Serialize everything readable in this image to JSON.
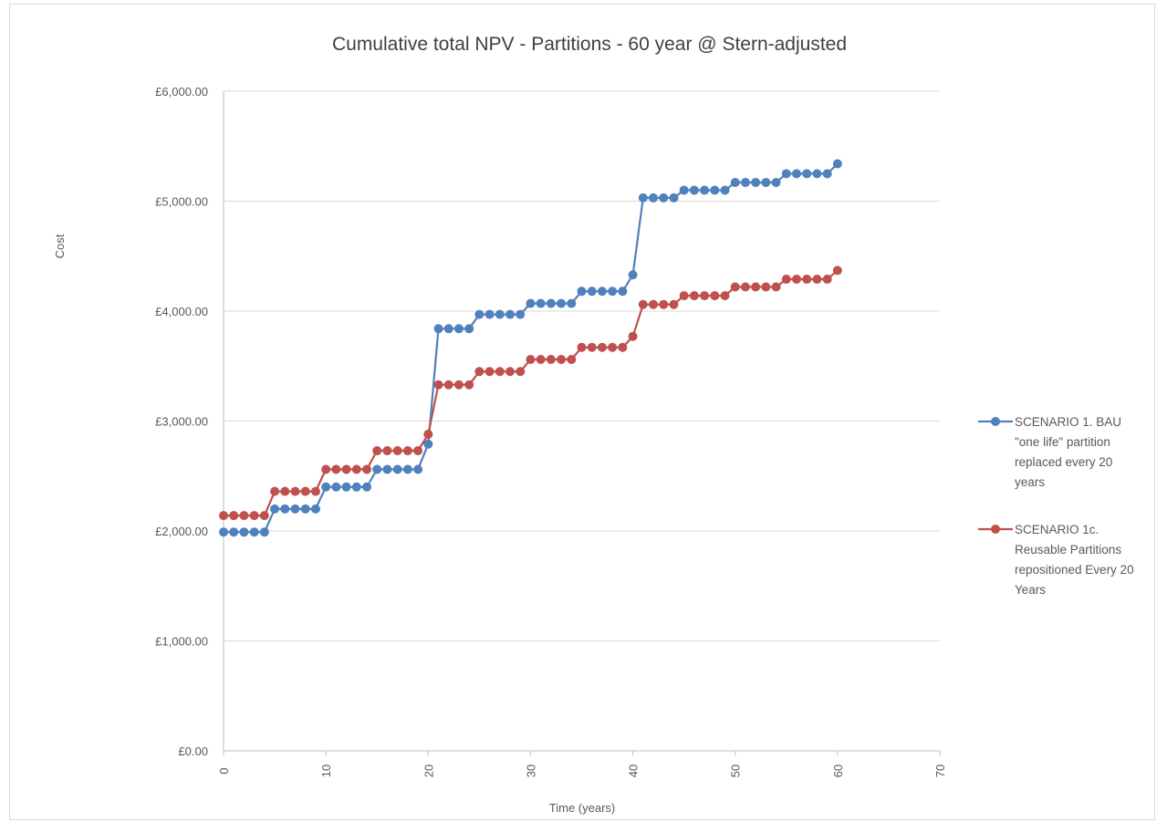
{
  "chart_data": {
    "type": "line",
    "title": "Cumulative total NPV - Partitions - 60 year @ Stern-adjusted",
    "xlabel": "Time (years)",
    "ylabel": "Cost",
    "xlim": [
      0,
      70
    ],
    "ylim": [
      0,
      6000
    ],
    "x_ticks": [
      "0",
      "10",
      "20",
      "30",
      "40",
      "50",
      "60",
      "70"
    ],
    "y_ticks": [
      "£0.00",
      "£1,000.00",
      "£2,000.00",
      "£3,000.00",
      "£4,000.00",
      "£5,000.00",
      "£6,000.00"
    ],
    "grid": "horizontal",
    "legend_position": "right",
    "x": [
      0,
      1,
      2,
      3,
      4,
      5,
      6,
      7,
      8,
      9,
      10,
      11,
      12,
      13,
      14,
      15,
      16,
      17,
      18,
      19,
      20,
      21,
      22,
      23,
      24,
      25,
      26,
      27,
      28,
      29,
      30,
      31,
      32,
      33,
      34,
      35,
      36,
      37,
      38,
      39,
      40,
      41,
      42,
      43,
      44,
      45,
      46,
      47,
      48,
      49,
      50,
      51,
      52,
      53,
      54,
      55,
      56,
      57,
      58,
      59,
      60
    ],
    "series": [
      {
        "name": "SCENARIO 1. BAU \"one life\" partition replaced every 20 years",
        "legend_lines": [
          "SCENARIO 1. BAU",
          "\"one life\" partition",
          "replaced every 20",
          "years"
        ],
        "color": "#4f81bd",
        "values": [
          1990,
          1990,
          1990,
          1990,
          1990,
          2200,
          2200,
          2200,
          2200,
          2200,
          2400,
          2400,
          2400,
          2400,
          2400,
          2560,
          2560,
          2560,
          2560,
          2560,
          2790,
          3840,
          3840,
          3840,
          3840,
          3970,
          3970,
          3970,
          3970,
          3970,
          4070,
          4070,
          4070,
          4070,
          4070,
          4180,
          4180,
          4180,
          4180,
          4180,
          4330,
          5030,
          5030,
          5030,
          5030,
          5100,
          5100,
          5100,
          5100,
          5100,
          5170,
          5170,
          5170,
          5170,
          5170,
          5250,
          5250,
          5250,
          5250,
          5250,
          5340
        ]
      },
      {
        "name": "SCENARIO 1c. Reusable Partitions repositioned Every 20 Years",
        "legend_lines": [
          "SCENARIO 1c.",
          "Reusable Partitions",
          "repositioned Every 20",
          "Years"
        ],
        "color": "#c0504d",
        "values": [
          2140,
          2140,
          2140,
          2140,
          2140,
          2360,
          2360,
          2360,
          2360,
          2360,
          2560,
          2560,
          2560,
          2560,
          2560,
          2730,
          2730,
          2730,
          2730,
          2730,
          2880,
          3330,
          3330,
          3330,
          3330,
          3450,
          3450,
          3450,
          3450,
          3450,
          3560,
          3560,
          3560,
          3560,
          3560,
          3670,
          3670,
          3670,
          3670,
          3670,
          3770,
          4060,
          4060,
          4060,
          4060,
          4140,
          4140,
          4140,
          4140,
          4140,
          4220,
          4220,
          4220,
          4220,
          4220,
          4290,
          4290,
          4290,
          4290,
          4290,
          4370
        ]
      }
    ]
  }
}
